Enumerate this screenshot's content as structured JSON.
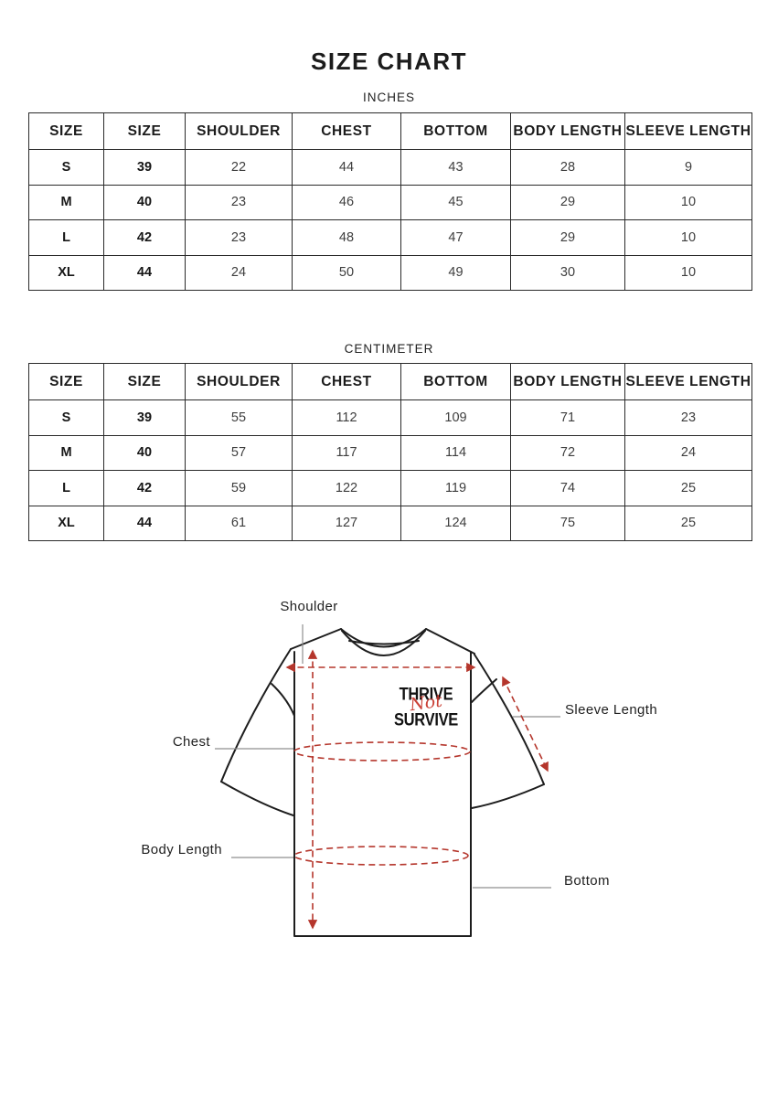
{
  "page": {
    "title": "SIZE CHART"
  },
  "tables": [
    {
      "unit_label": "INCHES",
      "headers": [
        "SIZE",
        "SIZE",
        "SHOULDER",
        "CHEST",
        "BOTTOM",
        "BODY LENGTH",
        "SLEEVE LENGTH"
      ],
      "rows": [
        {
          "size": "S",
          "size_code": "39",
          "values": [
            "22",
            "44",
            "43",
            "28",
            "9"
          ]
        },
        {
          "size": "M",
          "size_code": "40",
          "values": [
            "23",
            "46",
            "45",
            "29",
            "10"
          ]
        },
        {
          "size": "L",
          "size_code": "42",
          "values": [
            "23",
            "48",
            "47",
            "29",
            "10"
          ]
        },
        {
          "size": "XL",
          "size_code": "44",
          "values": [
            "24",
            "50",
            "49",
            "30",
            "10"
          ]
        }
      ]
    },
    {
      "unit_label": "CENTIMETER",
      "headers": [
        "SIZE",
        "SIZE",
        "SHOULDER",
        "CHEST",
        "BOTTOM",
        "BODY LENGTH",
        "SLEEVE LENGTH"
      ],
      "rows": [
        {
          "size": "S",
          "size_code": "39",
          "values": [
            "55",
            "112",
            "109",
            "71",
            "23"
          ]
        },
        {
          "size": "M",
          "size_code": "40",
          "values": [
            "57",
            "117",
            "114",
            "72",
            "24"
          ]
        },
        {
          "size": "L",
          "size_code": "42",
          "values": [
            "59",
            "122",
            "119",
            "74",
            "25"
          ]
        },
        {
          "size": "XL",
          "size_code": "44",
          "values": [
            "61",
            "127",
            "124",
            "75",
            "25"
          ]
        }
      ]
    }
  ],
  "diagram": {
    "labels": {
      "shoulder": "Shoulder",
      "chest": "Chest",
      "body_length": "Body Length",
      "sleeve_length": "Sleeve Length",
      "bottom": "Bottom"
    },
    "shirt_print": {
      "line1": "THRIVE",
      "script": "Not",
      "line2": "SURVIVE"
    },
    "colors": {
      "annotation_red": "#b5362c",
      "print_red": "#c8372d",
      "label_line_gray": "#8f8f8f",
      "outline": "#1d1d1d"
    }
  }
}
